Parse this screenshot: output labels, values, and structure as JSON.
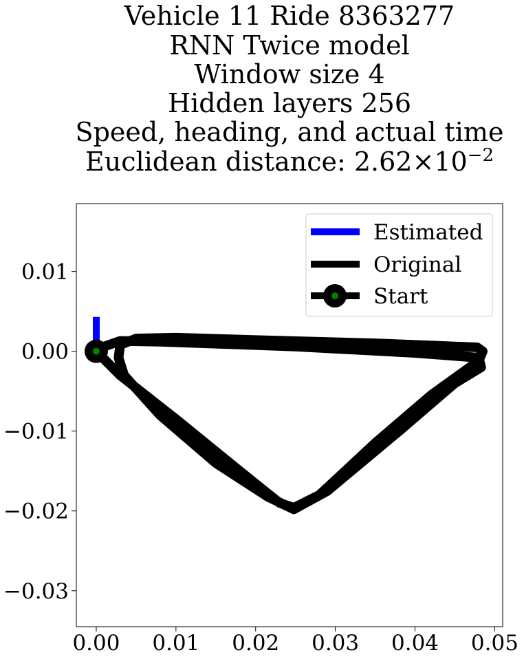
{
  "chart_data": {
    "type": "line",
    "title_lines": [
      "Vehicle 11 Ride 8363277",
      "RNN Twice model",
      "Window size 4",
      "Hidden layers 256",
      "Speed, heading, and actual time"
    ],
    "title_metric_prefix": "Euclidean distance: ",
    "title_metric_mantissa": "2.62",
    "title_metric_times": "×",
    "title_metric_base": "10",
    "title_metric_exponent": "−2",
    "xlabel": "",
    "ylabel": "",
    "xlim": [
      -0.0025,
      0.051
    ],
    "ylim": [
      -0.0345,
      0.0185
    ],
    "x_ticks": [
      0.0,
      0.01,
      0.02,
      0.03,
      0.04,
      0.05
    ],
    "x_tick_labels": [
      "0.00",
      "0.01",
      "0.02",
      "0.03",
      "0.04",
      "0.05"
    ],
    "y_ticks": [
      0.01,
      0.0,
      -0.01,
      -0.02,
      -0.03
    ],
    "y_tick_labels": [
      "0.01",
      "0.00",
      "−0.01",
      "−0.02",
      "−0.03"
    ],
    "grid": false,
    "legend_position": "top-right",
    "series": [
      {
        "name": "Estimated",
        "color": "#0000ff",
        "x": [
          0.0,
          0.0
        ],
        "y": [
          0.0043,
          0.0
        ]
      },
      {
        "name": "Original",
        "color": "#000000",
        "x": [
          0.0,
          0.003,
          0.01,
          0.018,
          0.023,
          0.0248,
          0.028,
          0.035,
          0.042,
          0.048,
          0.0485,
          0.0478,
          0.045,
          0.035,
          0.02,
          0.01,
          0.005,
          0.003,
          0.0028,
          0.0035,
          0.008,
          0.015,
          0.0215,
          0.0248,
          0.029,
          0.038,
          0.045,
          0.0483,
          0.048,
          0.04,
          0.025,
          0.008,
          0.003,
          0.001,
          0.0
        ],
        "y": [
          0.0,
          -0.003,
          -0.0085,
          -0.015,
          -0.019,
          -0.0196,
          -0.018,
          -0.0115,
          -0.0055,
          -0.0012,
          0.0,
          0.0005,
          0.0006,
          0.001,
          0.0014,
          0.0017,
          0.0016,
          0.0008,
          -0.0008,
          -0.003,
          -0.008,
          -0.014,
          -0.0182,
          -0.0198,
          -0.0175,
          -0.01,
          -0.004,
          -0.002,
          -0.0008,
          -0.0002,
          0.0006,
          0.0012,
          0.0013,
          0.0006,
          0.0
        ]
      },
      {
        "name": "Start",
        "color": "#000000",
        "marker_face_color": "#008000",
        "x": [
          0.0
        ],
        "y": [
          0.0
        ]
      }
    ]
  }
}
